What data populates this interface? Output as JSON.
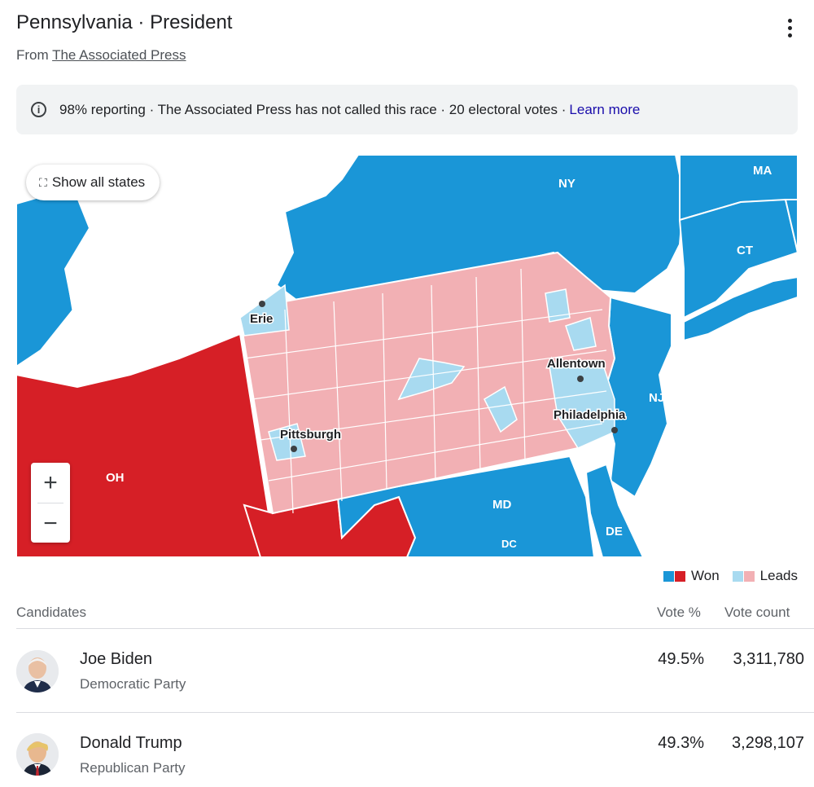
{
  "header": {
    "title": "Pennsylvania · President",
    "source_prefix": "From",
    "source_link": "The Associated Press"
  },
  "info": {
    "text": "98% reporting · The Associated Press has not called this race · 20 electoral votes ·",
    "learn_more": "Learn more"
  },
  "map": {
    "show_all_label": "Show all states",
    "zoom_in": "+",
    "zoom_out": "−",
    "state_labels": {
      "ny": "NY",
      "ma": "MA",
      "ct": "CT",
      "nj": "NJ",
      "oh": "OH",
      "md": "MD",
      "de": "DE",
      "dc": "DC"
    },
    "city_labels": {
      "erie": "Erie",
      "allentown": "Allentown",
      "pittsburgh": "Pittsburgh",
      "philadelphia": "Philadelphia"
    },
    "colors": {
      "dem_won": "#1a96d7",
      "rep_won": "#d61f26",
      "dem_leads": "#a8daf0",
      "rep_leads": "#f2b0b4"
    }
  },
  "legend": {
    "won": "Won",
    "leads": "Leads"
  },
  "table": {
    "headers": {
      "candidates": "Candidates",
      "vote_pct": "Vote %",
      "vote_count": "Vote count"
    },
    "candidates": [
      {
        "name": "Joe Biden",
        "party": "Democratic Party",
        "vote_pct": "49.5%",
        "vote_count": "3,311,780"
      },
      {
        "name": "Donald Trump",
        "party": "Republican Party",
        "vote_pct": "49.3%",
        "vote_count": "3,298,107"
      }
    ]
  }
}
